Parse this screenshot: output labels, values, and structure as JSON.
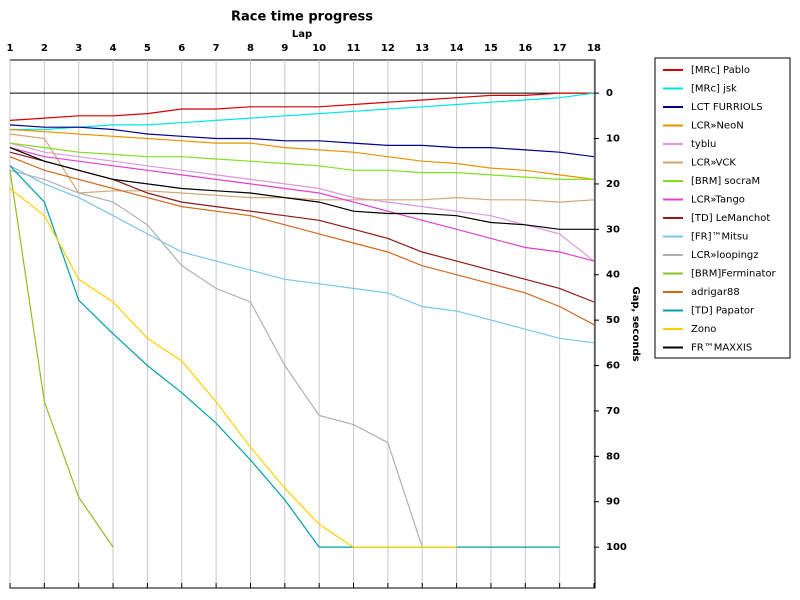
{
  "chart_data": {
    "type": "line",
    "title": "Race time progress",
    "x_label": "Lap",
    "y_label": "Gap, seconds",
    "x": [
      1,
      2,
      3,
      4,
      5,
      6,
      7,
      8,
      9,
      10,
      11,
      12,
      13,
      14,
      15,
      16,
      17,
      18
    ],
    "xlim": [
      1,
      18
    ],
    "xticks": [
      1,
      2,
      3,
      4,
      5,
      6,
      7,
      8,
      9,
      10,
      11,
      12,
      13,
      14,
      15,
      16,
      17,
      18
    ],
    "ylim": [
      -7.3,
      109
    ],
    "y_inverted": true,
    "yticks": [
      0,
      10,
      20,
      30,
      40,
      50,
      60,
      70,
      80,
      90,
      100
    ],
    "zero_line": true,
    "grid": "x",
    "legend": "right",
    "series": [
      {
        "name": "[MRc] Pablo",
        "color": "#d40000",
        "values": [
          6,
          5.5,
          5,
          5,
          4.5,
          3.5,
          3.5,
          3,
          3,
          3,
          2.5,
          2,
          1.5,
          1,
          0.5,
          0.5,
          0,
          0
        ]
      },
      {
        "name": "[MRc] jsk",
        "color": "#00e5e5",
        "values": [
          8,
          8,
          7.5,
          7,
          7,
          6.5,
          6,
          5.5,
          5,
          4.5,
          4,
          3.5,
          3,
          2.5,
          2,
          1.5,
          1,
          0
        ]
      },
      {
        "name": "LCT FURRIOLS",
        "color": "#00008b",
        "values": [
          7,
          7.5,
          7.5,
          8,
          9,
          9.5,
          10,
          10,
          10.5,
          10.5,
          11,
          11.5,
          11.5,
          12,
          12,
          12.5,
          13,
          14
        ]
      },
      {
        "name": "LCR»NeoN",
        "color": "#e69500",
        "values": [
          8,
          8.5,
          9,
          9.5,
          10,
          10.5,
          11,
          11,
          12,
          12.5,
          13,
          14,
          15,
          15.5,
          16.5,
          17,
          18,
          19
        ]
      },
      {
        "name": "tyblu",
        "color": "#dd99dd",
        "values": [
          11,
          13,
          14,
          15,
          16,
          17,
          18,
          19,
          20,
          21,
          23,
          24,
          25,
          26,
          27,
          29,
          31,
          37
        ]
      },
      {
        "name": "LCR»VCK",
        "color": "#d2a679",
        "values": [
          9,
          10,
          22,
          21.5,
          21.5,
          22,
          22.5,
          23,
          23,
          23.5,
          23.5,
          23.5,
          23.5,
          23,
          23.5,
          23.5,
          24,
          23.5
        ]
      },
      {
        "name": "[BRM] socraM",
        "color": "#7fe020",
        "values": [
          11,
          12,
          13,
          13.5,
          14,
          14,
          14.5,
          15,
          15.5,
          16,
          17,
          17,
          17.5,
          17.5,
          18,
          18.5,
          19,
          19
        ]
      },
      {
        "name": "LCR»Tango",
        "color": "#e040d0",
        "values": [
          12,
          14,
          15,
          16,
          17,
          18,
          19,
          20,
          21,
          22,
          24,
          26,
          28,
          30,
          32,
          34,
          35,
          37
        ]
      },
      {
        "name": "[TD] LeManchot",
        "color": "#8b1a1a",
        "values": [
          13,
          15,
          17,
          19,
          22,
          24,
          25,
          26,
          27,
          28,
          30,
          32,
          35,
          37,
          39,
          41,
          43,
          46
        ]
      },
      {
        "name": "[FR]™Mitsu",
        "color": "#79c7e8",
        "values": [
          16,
          20,
          23,
          27,
          31,
          35,
          37,
          39,
          41,
          42,
          43,
          44,
          47,
          48,
          50,
          52,
          54,
          55
        ]
      },
      {
        "name": "LCR»loopingz",
        "color": "#b0b0b0",
        "values": [
          17,
          19,
          22,
          24,
          29,
          38,
          43,
          46,
          60,
          71,
          73,
          77,
          100,
          null,
          null,
          null,
          null,
          null
        ]
      },
      {
        "name": "[BRM]Ferminator",
        "color": "#8fbf20",
        "values": [
          17,
          68,
          89,
          100,
          null,
          null,
          null,
          null,
          null,
          null,
          null,
          null,
          null,
          null,
          null,
          null,
          null,
          null
        ]
      },
      {
        "name": "adrigar88",
        "color": "#d2691e",
        "values": [
          14,
          17,
          19,
          21,
          23,
          25,
          26,
          27,
          29,
          31,
          33,
          35,
          38,
          40,
          42,
          44,
          47,
          51
        ]
      },
      {
        "name": "[TD] Papator",
        "color": "#00a0a8",
        "values": [
          16,
          24,
          45.6,
          53,
          60,
          66,
          72.7,
          80.8,
          89.6,
          100,
          100,
          100,
          100,
          100,
          100,
          100,
          100,
          null
        ]
      },
      {
        "name": "Zono",
        "color": "#ffd000",
        "values": [
          21,
          27,
          41,
          46,
          54,
          59,
          68,
          78,
          87,
          95,
          100,
          100,
          100,
          100,
          null,
          null,
          null,
          null
        ]
      },
      {
        "name": "FR™MAXXIS",
        "color": "#000000",
        "values": [
          12,
          15,
          17,
          19,
          20,
          21,
          21.5,
          22,
          23,
          24,
          26,
          26.5,
          26.5,
          27,
          28.5,
          29,
          30,
          30
        ]
      }
    ]
  }
}
